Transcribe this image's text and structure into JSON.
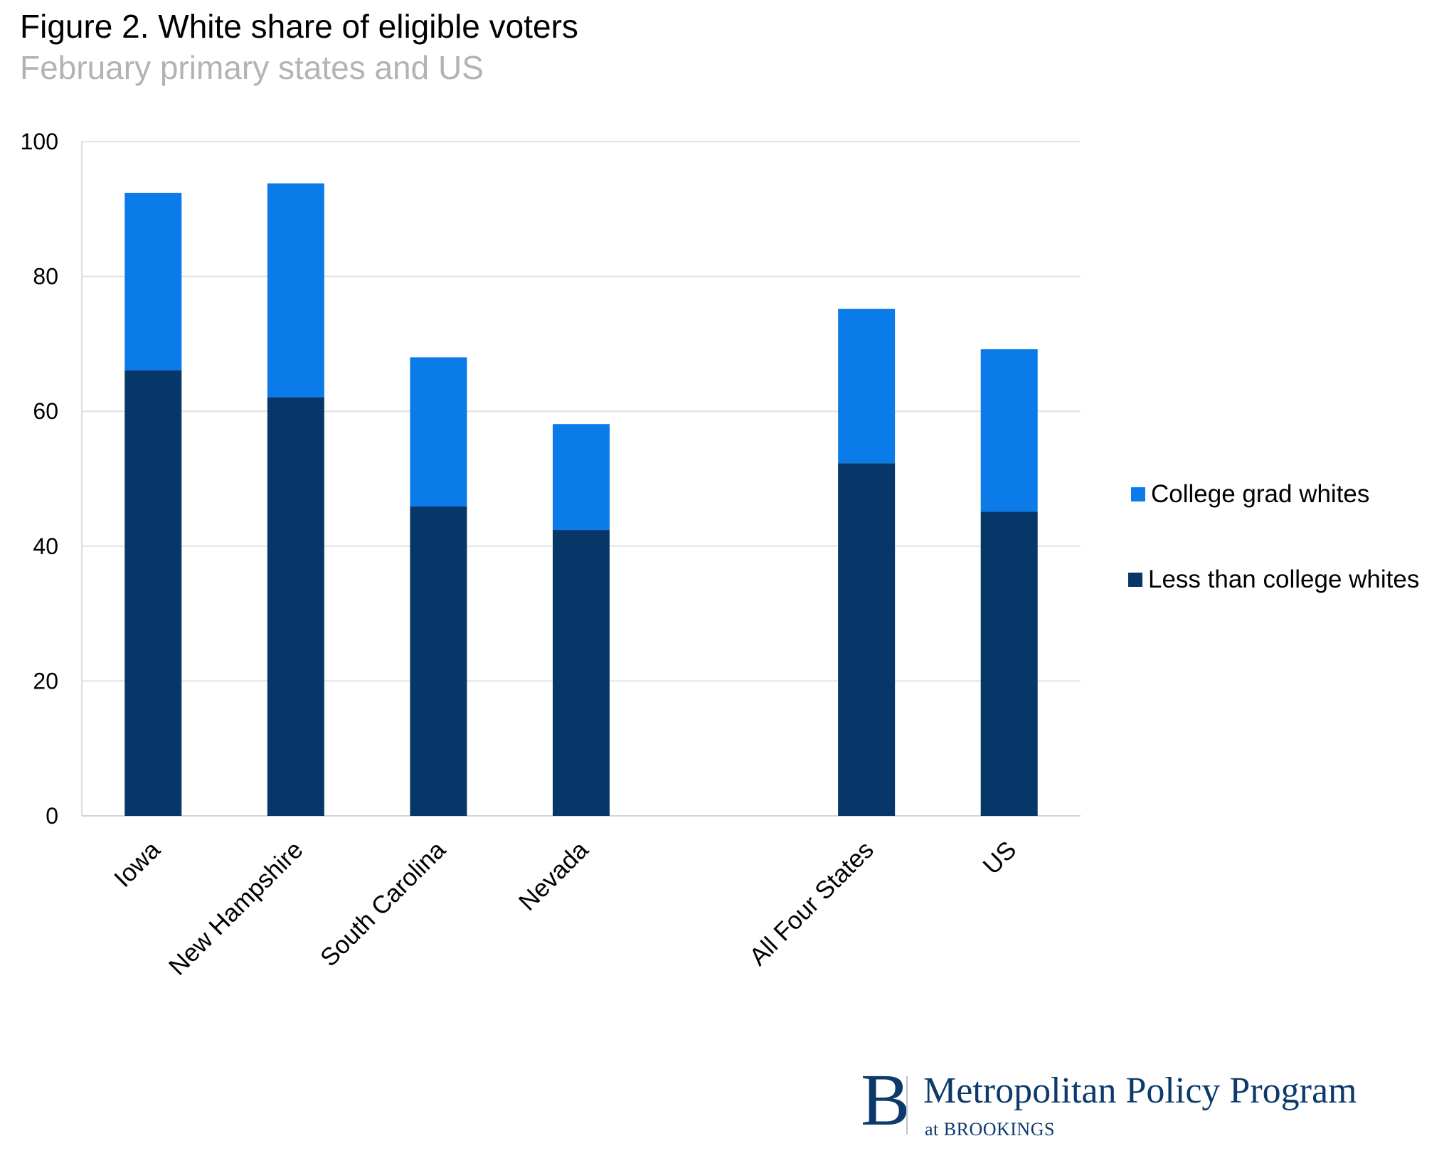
{
  "header": {
    "title": "Figure 2. White share of eligible voters",
    "subtitle": "February primary states and US"
  },
  "chart_data": {
    "type": "bar",
    "stacked": true,
    "title": "Figure 2. White share of eligible voters",
    "subtitle": "February primary states and US",
    "xlabel": "",
    "ylabel": "",
    "ylim": [
      0,
      100
    ],
    "yticks": [
      0,
      20,
      40,
      60,
      80,
      100
    ],
    "grid": true,
    "legend_position": "right",
    "categories": [
      "Iowa",
      "New Hampshire",
      "South Carolina",
      "Nevada",
      "",
      "All Four States",
      "US"
    ],
    "series": [
      {
        "name": "Less than college whites",
        "color": "#063768",
        "values": [
          66.1,
          62.1,
          45.9,
          42.4,
          null,
          52.3,
          45.1
        ]
      },
      {
        "name": "College grad whites",
        "color": "#0b7be9",
        "values": [
          26.3,
          31.7,
          22.1,
          15.7,
          null,
          22.9,
          24.1
        ]
      }
    ],
    "totals": [
      92.4,
      93.8,
      68.0,
      58.1,
      null,
      75.2,
      69.2
    ]
  },
  "legend": {
    "items": [
      {
        "label": "College grad whites",
        "color": "#0b7be9"
      },
      {
        "label": "Less than college whites",
        "color": "#063768"
      }
    ]
  },
  "logo": {
    "letter": "B",
    "name": "Metropolitan Policy Program",
    "sub": "at BROOKINGS"
  }
}
